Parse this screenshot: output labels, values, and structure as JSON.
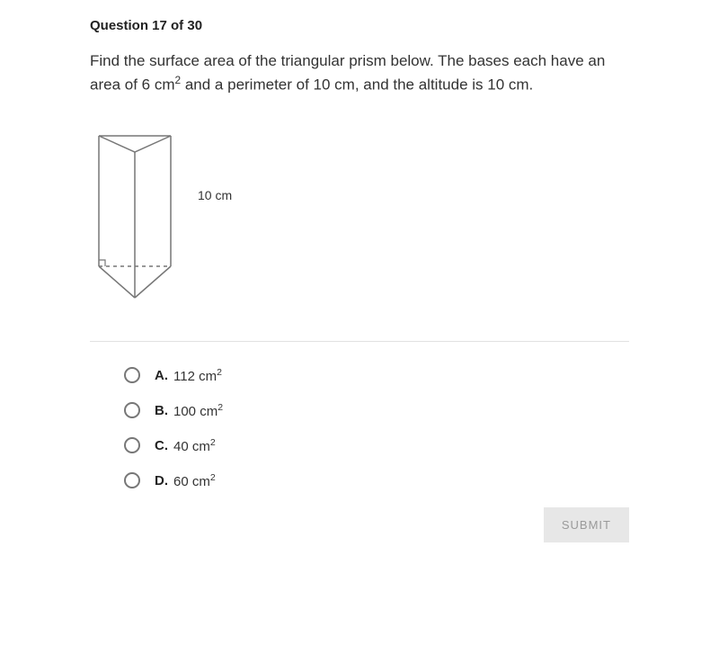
{
  "question_header": "Question 17 of 30",
  "question_body_html": "Find the surface area of the triangular prism below. The bases each have an area of 6 cm<sup class='sup'>2</sup> and a perimeter of 10 cm, and the altitude is 10 cm.",
  "figure": {
    "altitude_label": "10 cm",
    "stroke_color": "#777777",
    "dashed_color": "#777777",
    "fill": "none",
    "right_angle_marker": true
  },
  "options": [
    {
      "letter": "A.",
      "value_html": "112 cm<sup class='sup'>2</sup>"
    },
    {
      "letter": "B.",
      "value_html": "100 cm<sup class='sup'>2</sup>"
    },
    {
      "letter": "C.",
      "value_html": "40 cm<sup class='sup'>2</sup>"
    },
    {
      "letter": "D.",
      "value_html": "60 cm<sup class='sup'>2</sup>"
    }
  ],
  "submit_label": "SUBMIT",
  "styles": {
    "text_color": "#333333",
    "bold_color": "#222222",
    "divider_color": "#e2e2e2",
    "radio_border": "#777777",
    "submit_bg": "#e7e7e7",
    "submit_fg": "#9a9a9a",
    "body_font_size": 17,
    "option_font_size": 15
  }
}
